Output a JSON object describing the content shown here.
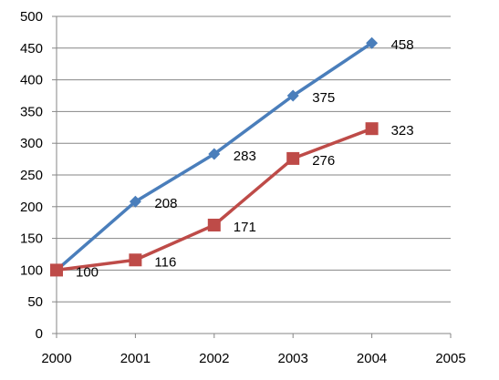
{
  "chart_data": {
    "type": "line",
    "title": "",
    "xlabel": "",
    "ylabel": "",
    "x_ticks": [
      "2000",
      "2001",
      "2002",
      "2003",
      "2004",
      "2005"
    ],
    "y_ticks": [
      "0",
      "50",
      "100",
      "150",
      "200",
      "250",
      "300",
      "350",
      "400",
      "450",
      "500"
    ],
    "xlim": [
      2000,
      2005
    ],
    "ylim": [
      0,
      500
    ],
    "grid": "horizontal",
    "legend": "none",
    "series": [
      {
        "color": "#4a7ebb",
        "marker": "diamond",
        "x": [
          2000,
          2001,
          2002,
          2003,
          2004
        ],
        "values": [
          100,
          208,
          283,
          375,
          458
        ],
        "data_labels": [
          "",
          "208",
          "283",
          "375",
          "458"
        ]
      },
      {
        "color": "#be4b48",
        "marker": "square",
        "x": [
          2000,
          2001,
          2002,
          2003,
          2004
        ],
        "values": [
          100,
          116,
          171,
          276,
          323
        ],
        "data_labels": [
          "100",
          "116",
          "171",
          "276",
          "323"
        ]
      }
    ]
  }
}
